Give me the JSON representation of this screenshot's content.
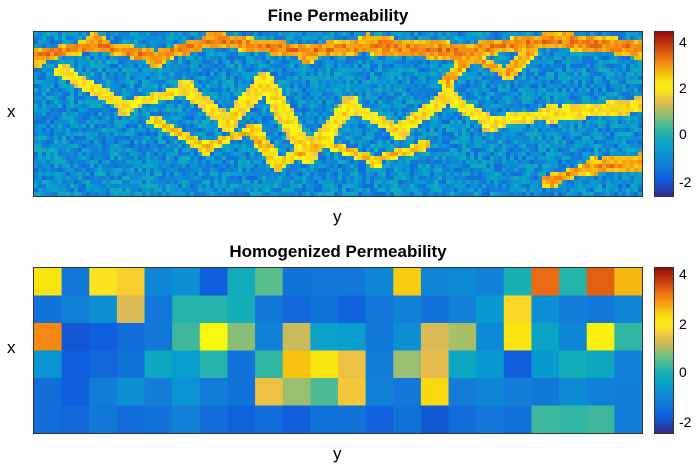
{
  "chart_data": [
    {
      "type": "heatmap",
      "title": "Fine Permeability",
      "xlabel": "y",
      "ylabel": "x",
      "colorbar": {
        "min": -2.5,
        "max": 4.5,
        "ticks": [
          "4",
          "2",
          "0",
          "-2"
        ],
        "colormap": "parula"
      },
      "grid": false
    },
    {
      "type": "heatmap",
      "title": "Homogenized Permeability",
      "xlabel": "y",
      "ylabel": "x",
      "colorbar": {
        "min": -2.5,
        "max": 4.5,
        "ticks": [
          "4",
          "2",
          "0",
          "-2"
        ],
        "colormap": "parula"
      },
      "grid": false,
      "rows": 6,
      "cols": 22,
      "values": [
        [
          2.4,
          -1.3,
          2.0,
          1.8,
          -1.0,
          -0.8,
          -1.8,
          -0.1,
          0.6,
          -1.4,
          -1.3,
          -1.3,
          -1.0,
          2.6,
          -1.0,
          -0.9,
          -1.1,
          0.1,
          3.5,
          0.2,
          3.6,
          2.8
        ],
        [
          -1.4,
          -1.1,
          -0.8,
          1.4,
          -1.3,
          0.2,
          0.2,
          0.0,
          -1.3,
          -1.6,
          -1.4,
          -1.7,
          -1.3,
          -1.1,
          -1.4,
          -1.1,
          -0.6,
          1.9,
          -0.8,
          -1.2,
          -1.3,
          -1.0
        ],
        [
          3.2,
          -1.9,
          -1.8,
          -1.5,
          -1.3,
          0.4,
          2.2,
          0.9,
          -1.1,
          1.3,
          -0.4,
          -0.5,
          -1.3,
          -0.8,
          1.4,
          1.1,
          -0.9,
          2.4,
          -0.3,
          -1.0,
          2.3,
          0.3
        ],
        [
          -0.7,
          -1.8,
          -1.6,
          -1.4,
          -0.2,
          -0.5,
          0.2,
          -1.4,
          0.3,
          2.7,
          2.4,
          1.6,
          -1.2,
          1.0,
          1.5,
          -0.2,
          -0.6,
          -1.8,
          -0.6,
          0.0,
          -0.2,
          -1.1
        ],
        [
          -1.5,
          -1.8,
          -1.2,
          -0.8,
          -1.2,
          -0.7,
          -1.2,
          -1.4,
          1.6,
          1.0,
          0.5,
          1.7,
          -1.1,
          -1.3,
          2.5,
          -1.2,
          -1.0,
          -1.2,
          -1.3,
          -0.9,
          -1.1,
          -1.2
        ],
        [
          -1.5,
          -1.6,
          -1.3,
          -1.5,
          -1.4,
          -1.1,
          -1.5,
          -1.7,
          -1.5,
          -1.8,
          -1.4,
          -1.4,
          -1.7,
          -1.4,
          -1.9,
          -1.5,
          -1.3,
          -1.4,
          0.4,
          0.3,
          0.4,
          -1.2
        ]
      ]
    }
  ]
}
